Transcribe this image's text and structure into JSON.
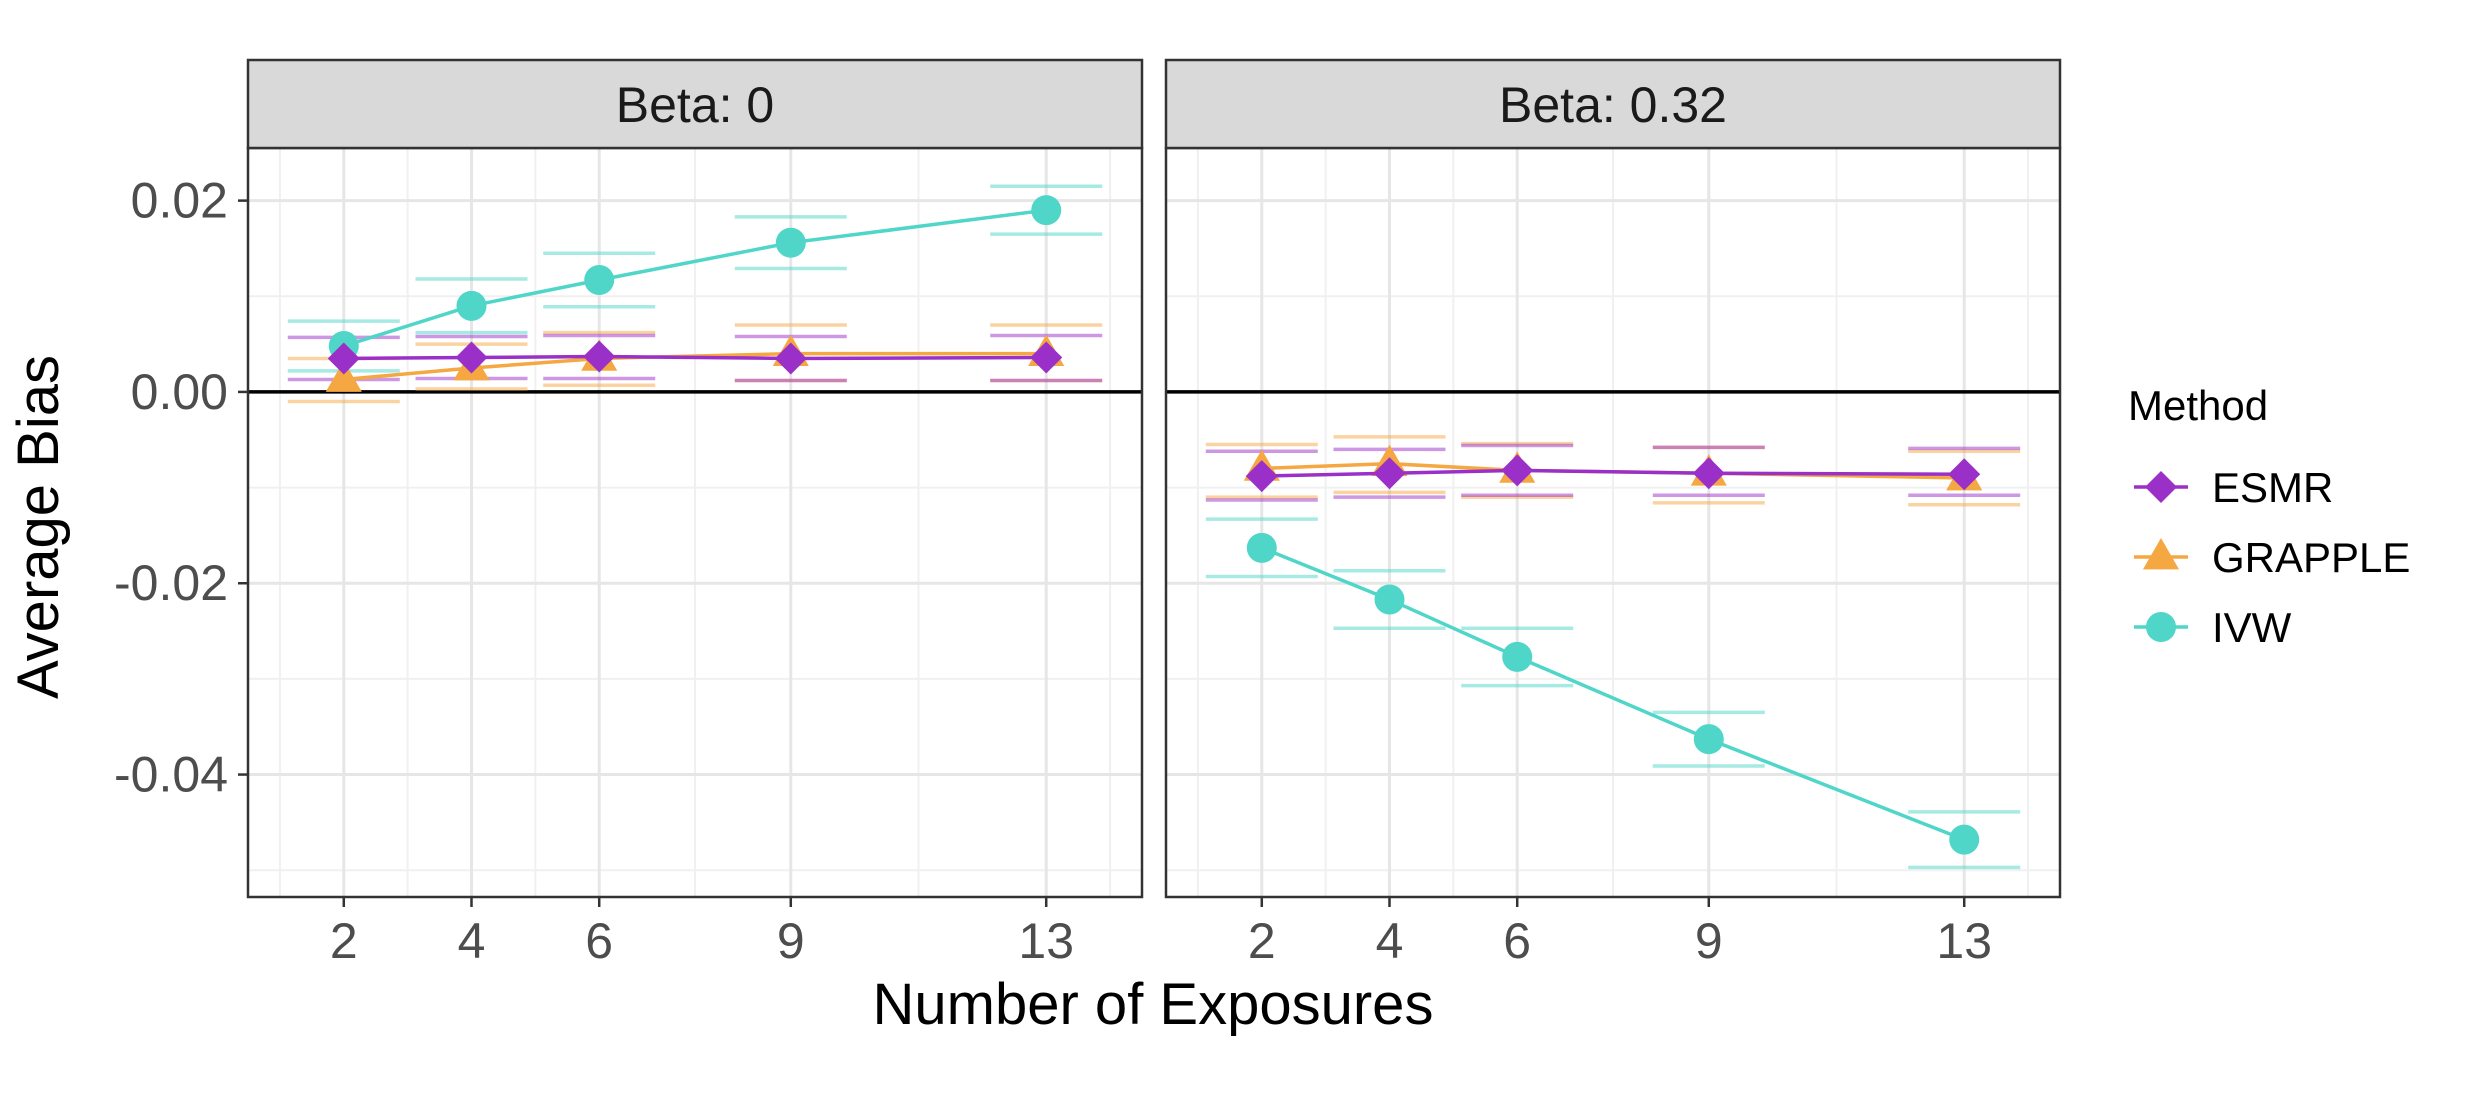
{
  "chart_data": {
    "type": "line",
    "xlabel": "Number of Exposures",
    "ylabel": "Average Bias",
    "x_ticks": [
      2,
      4,
      6,
      9,
      13
    ],
    "xlim": [
      0.5,
      14.5
    ],
    "y_ticks": [
      0.02,
      0.0,
      -0.02,
      -0.04
    ],
    "y_tick_labels": [
      "0.02",
      "0.00",
      "-0.02",
      "-0.04"
    ],
    "ylim": [
      -0.0528,
      0.0255
    ],
    "grid": true,
    "reference_line": 0,
    "legend": {
      "title": "Method",
      "position": "right",
      "entries": [
        {
          "label": "ESMR",
          "color": "#9b30c8",
          "shape": "diamond"
        },
        {
          "label": "GRAPPLE",
          "color": "#f5a742",
          "shape": "triangle"
        },
        {
          "label": "IVW",
          "color": "#4fd6c8",
          "shape": "circle"
        }
      ]
    },
    "panels": [
      {
        "label": "Beta: 0",
        "series": [
          {
            "name": "ESMR",
            "x": [
              2,
              4,
              6,
              9,
              13
            ],
            "y": [
              0.0035,
              0.0036,
              0.0037,
              0.0035,
              0.0036
            ],
            "err_low": [
              0.0013,
              0.0014,
              0.0014,
              0.0012,
              0.0012
            ],
            "err_high": [
              0.0057,
              0.0058,
              0.0059,
              0.0058,
              0.0059
            ]
          },
          {
            "name": "GRAPPLE",
            "x": [
              2,
              4,
              6,
              9,
              13
            ],
            "y": [
              0.0013,
              0.0025,
              0.0035,
              0.004,
              0.004
            ],
            "err_low": [
              -0.001,
              0.0003,
              0.0007,
              0.0012,
              0.0012
            ],
            "err_high": [
              0.0035,
              0.005,
              0.0062,
              0.007,
              0.007
            ]
          },
          {
            "name": "IVW",
            "x": [
              2,
              4,
              6,
              9,
              13
            ],
            "y": [
              0.0048,
              0.009,
              0.0117,
              0.0156,
              0.019
            ],
            "err_low": [
              0.0022,
              0.0062,
              0.0089,
              0.0129,
              0.0165
            ],
            "err_high": [
              0.0074,
              0.0118,
              0.0145,
              0.0183,
              0.0215
            ]
          }
        ]
      },
      {
        "label": "Beta: 0.32",
        "series": [
          {
            "name": "ESMR",
            "x": [
              2,
              4,
              6,
              9,
              13
            ],
            "y": [
              -0.0088,
              -0.0085,
              -0.0082,
              -0.0085,
              -0.0086
            ],
            "err_low": [
              -0.0113,
              -0.011,
              -0.0108,
              -0.0108,
              -0.0108
            ],
            "err_high": [
              -0.0062,
              -0.006,
              -0.0056,
              -0.0058,
              -0.0059
            ]
          },
          {
            "name": "GRAPPLE",
            "x": [
              2,
              4,
              6,
              9,
              13
            ],
            "y": [
              -0.008,
              -0.0075,
              -0.0082,
              -0.0085,
              -0.009
            ],
            "err_low": [
              -0.011,
              -0.0105,
              -0.011,
              -0.0116,
              -0.0118
            ],
            "err_high": [
              -0.0055,
              -0.0047,
              -0.0054,
              -0.0058,
              -0.0062
            ]
          },
          {
            "name": "IVW",
            "x": [
              2,
              4,
              6,
              9,
              13
            ],
            "y": [
              -0.0163,
              -0.0217,
              -0.0277,
              -0.0363,
              -0.0468
            ],
            "err_low": [
              -0.0193,
              -0.0247,
              -0.0307,
              -0.0391,
              -0.0497
            ],
            "err_high": [
              -0.0133,
              -0.0187,
              -0.0247,
              -0.0335,
              -0.0439
            ]
          }
        ]
      }
    ]
  }
}
